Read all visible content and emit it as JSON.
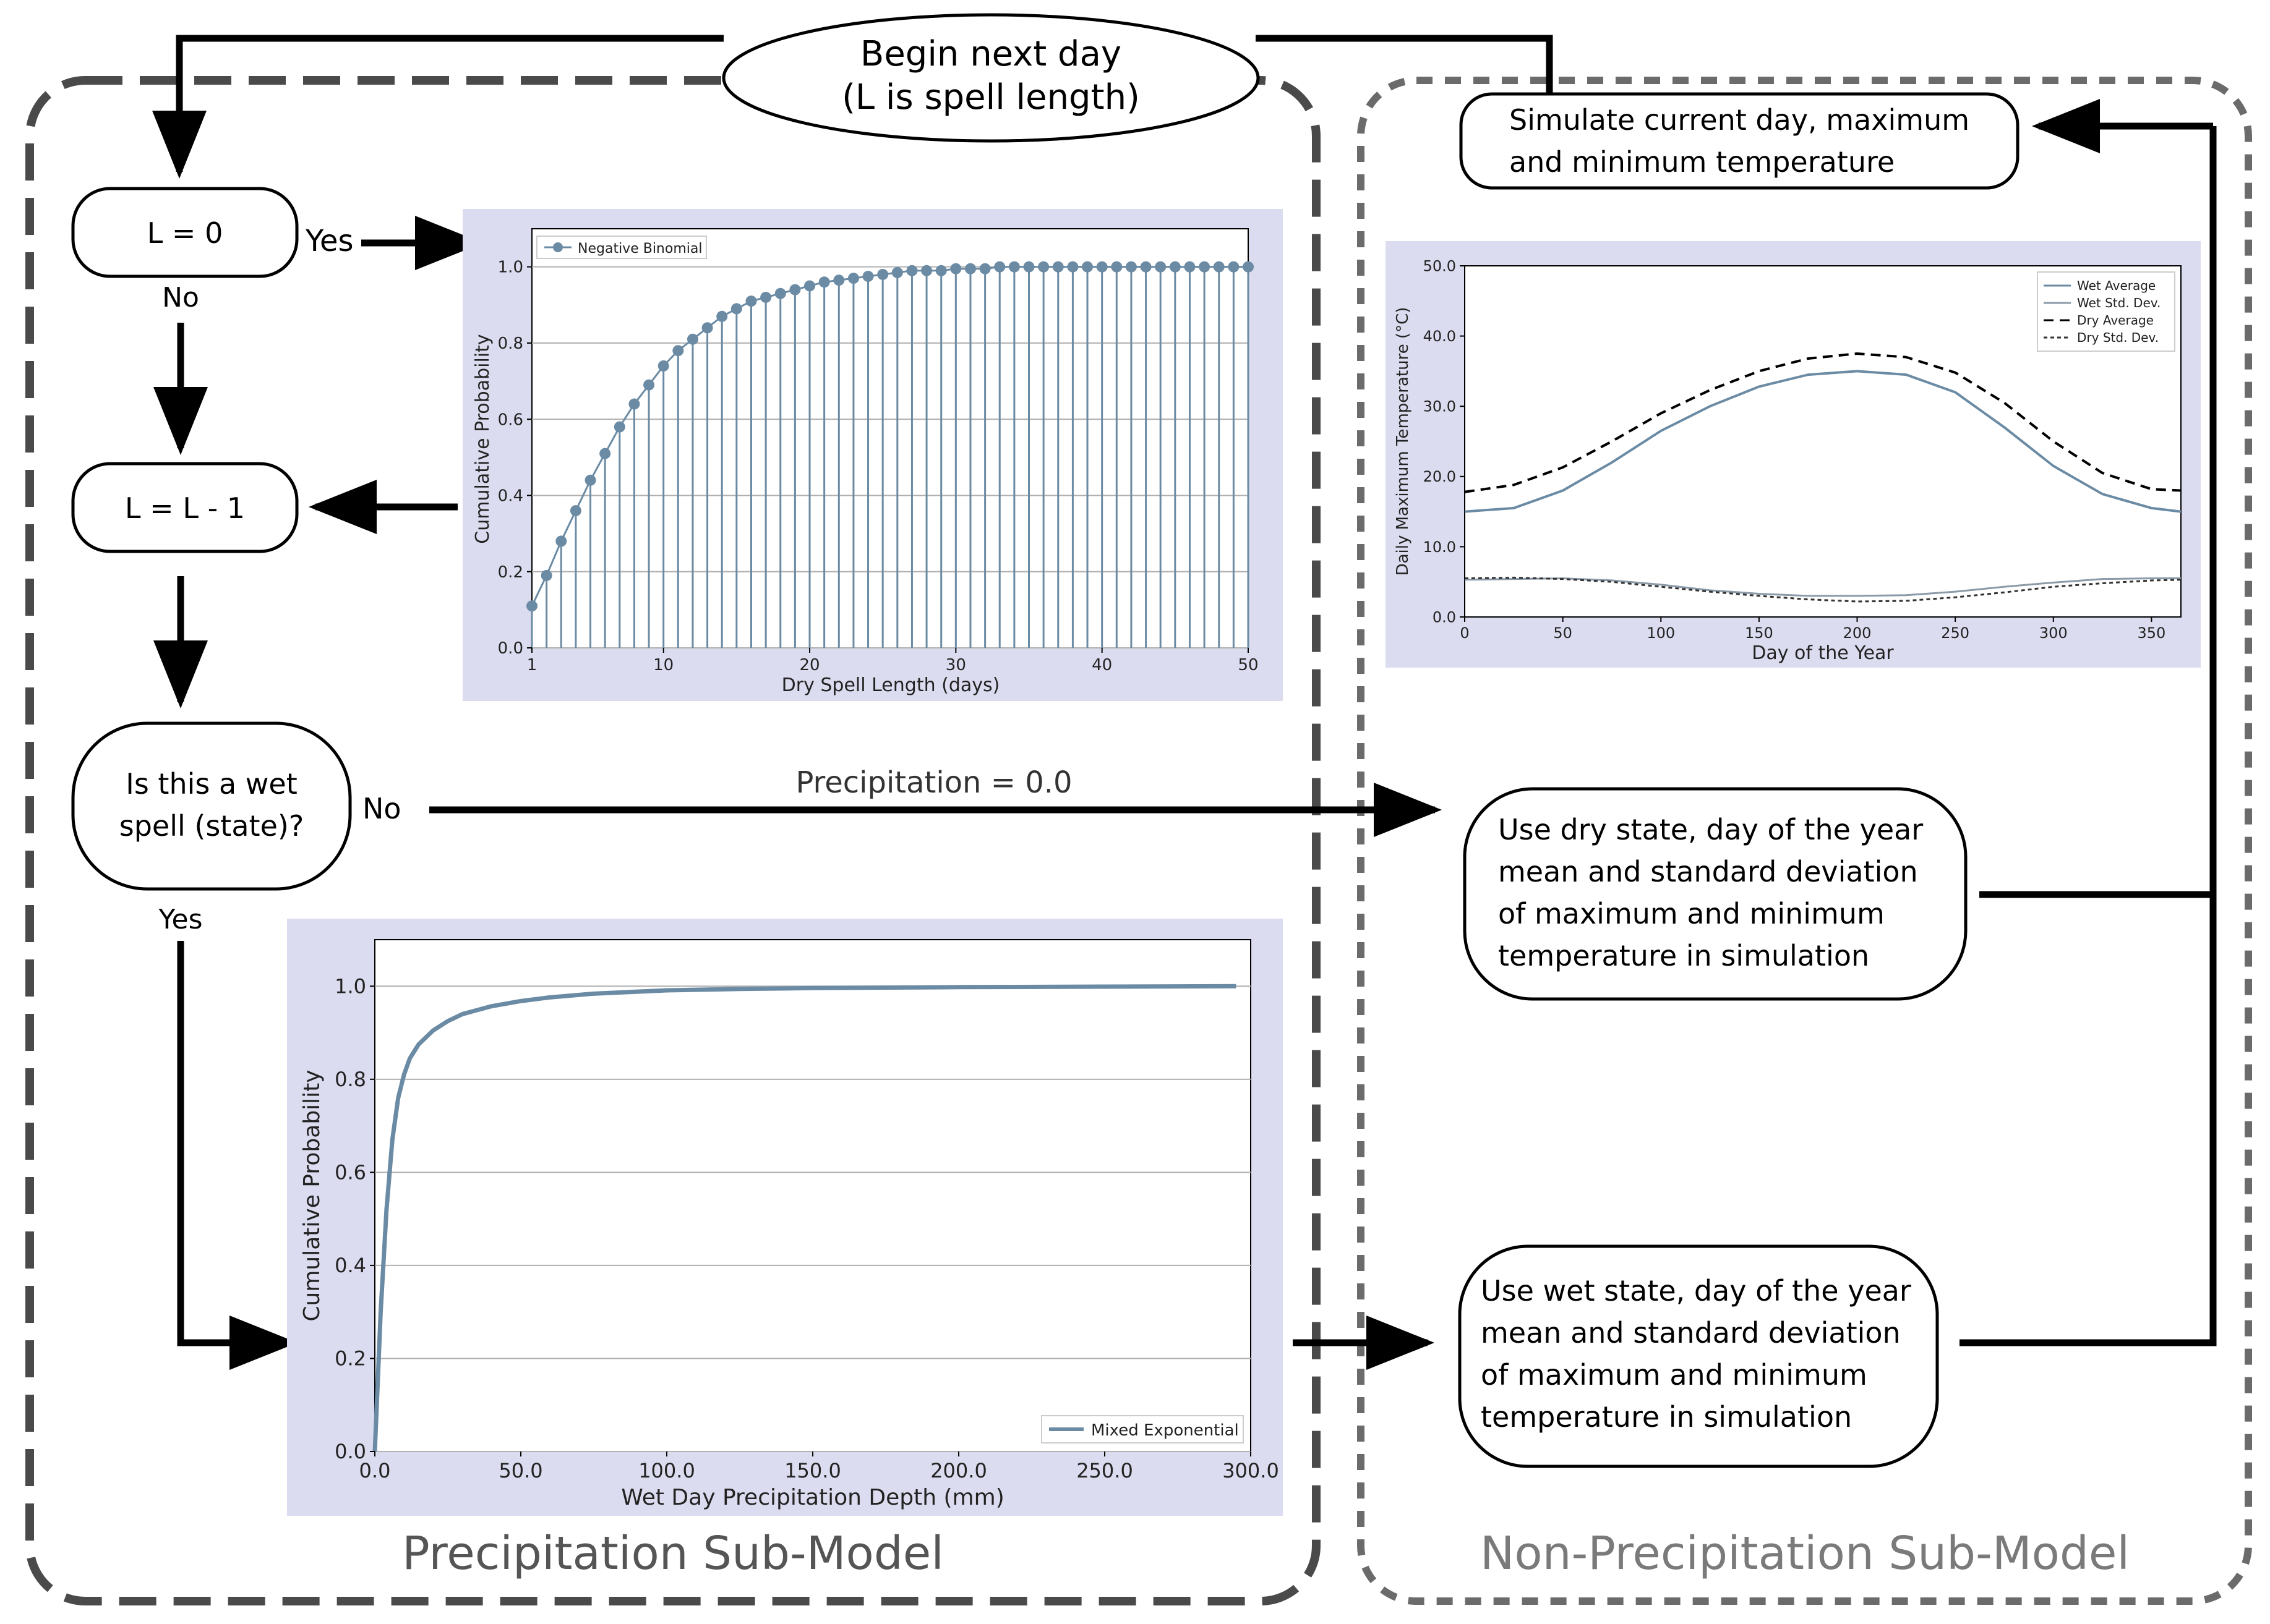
{
  "flow": {
    "start_line1": "Begin next day",
    "start_line2": "(L is spell length)",
    "l_zero": "L = 0",
    "yes_label": "Yes",
    "no_label": "No",
    "l_decrement": "L = L - 1",
    "wet_question_line1": "Is this a wet",
    "wet_question_line2": "spell (state)?",
    "no2_label": "No",
    "yes2_label": "Yes",
    "precip_zero": "Precipitation = 0.0",
    "simulate_line1": "Simulate current day, maximum",
    "simulate_line2": "and minimum temperature",
    "dry_box": [
      "Use dry state, day of the year",
      "mean and standard deviation",
      "of maximum and minimum",
      "temperature in simulation"
    ],
    "wet_box": [
      "Use wet state, day of the year",
      "mean and standard deviation",
      "of maximum and minimum",
      "temperature in simulation"
    ],
    "precip_submodel": "Precipitation Sub-Model",
    "nonprecip_submodel": "Non-Precipitation Sub-Model"
  },
  "colors": {
    "line": "#000000",
    "dash_precip": "#4a4a4a",
    "dash_nonprecip": "#6b6b6b",
    "chart_bg": "#dcdcf0",
    "series": "#6b8ba4",
    "submodel_text": "#555555",
    "submodel_text_light": "#7a7a7a"
  },
  "chart_data": [
    {
      "id": "dry-spell",
      "type": "stem",
      "title": "",
      "xlabel": "Dry Spell Length (days)",
      "ylabel": "Cumulative Probability",
      "xlim": [
        1,
        50
      ],
      "ylim": [
        0,
        1.1
      ],
      "xticks": [
        1,
        10,
        20,
        30,
        40,
        50
      ],
      "yticks": [
        0.0,
        0.2,
        0.4,
        0.6,
        0.8,
        1.0
      ],
      "ytick_labels": [
        "0.0",
        "0.2",
        "0.4",
        "0.6",
        "0.8",
        "1.0"
      ],
      "legend": "Negative Binomial",
      "legend_position": "top-left",
      "x": [
        1,
        2,
        3,
        4,
        5,
        6,
        7,
        8,
        9,
        10,
        11,
        12,
        13,
        14,
        15,
        16,
        17,
        18,
        19,
        20,
        21,
        22,
        23,
        24,
        25,
        26,
        27,
        28,
        29,
        30,
        31,
        32,
        33,
        34,
        35,
        36,
        37,
        38,
        39,
        40,
        41,
        42,
        43,
        44,
        45,
        46,
        47,
        48,
        49,
        50
      ],
      "values": [
        0.11,
        0.19,
        0.28,
        0.36,
        0.44,
        0.51,
        0.58,
        0.64,
        0.69,
        0.74,
        0.78,
        0.81,
        0.84,
        0.87,
        0.89,
        0.91,
        0.92,
        0.93,
        0.94,
        0.95,
        0.96,
        0.965,
        0.97,
        0.975,
        0.98,
        0.985,
        0.99,
        0.99,
        0.99,
        0.995,
        0.995,
        0.995,
        1.0,
        1.0,
        1.0,
        1.0,
        1.0,
        1.0,
        1.0,
        1.0,
        1.0,
        1.0,
        1.0,
        1.0,
        1.0,
        1.0,
        1.0,
        1.0,
        1.0,
        1.0
      ]
    },
    {
      "id": "wet-depth",
      "type": "line",
      "title": "",
      "xlabel": "Wet Day Precipitation Depth (mm)",
      "ylabel": "Cumulative Probability",
      "xlim": [
        0,
        300
      ],
      "ylim": [
        0,
        1.1
      ],
      "xticks": [
        0,
        50,
        100,
        150,
        200,
        250,
        300
      ],
      "xtick_labels": [
        "0.0",
        "50.0",
        "100.0",
        "150.0",
        "200.0",
        "250.0",
        "300.0"
      ],
      "yticks": [
        0.0,
        0.2,
        0.4,
        0.6,
        0.8,
        1.0
      ],
      "ytick_labels": [
        "0.0",
        "0.2",
        "0.4",
        "0.6",
        "0.8",
        "1.0"
      ],
      "legend": "Mixed Exponential",
      "legend_position": "bottom-right",
      "x": [
        0,
        2,
        4,
        6,
        8,
        10,
        12,
        15,
        20,
        25,
        30,
        40,
        50,
        60,
        75,
        100,
        125,
        150,
        200,
        250,
        295
      ],
      "values": [
        0,
        0.3,
        0.52,
        0.67,
        0.76,
        0.81,
        0.845,
        0.875,
        0.905,
        0.925,
        0.94,
        0.957,
        0.968,
        0.976,
        0.984,
        0.991,
        0.994,
        0.996,
        0.998,
        0.999,
        1.0
      ]
    },
    {
      "id": "temperature",
      "type": "line",
      "title": "",
      "xlabel": "Day of the Year",
      "ylabel": "Daily Maximum Temperature (°C)",
      "xlim": [
        0,
        365
      ],
      "ylim": [
        0,
        50
      ],
      "xticks": [
        0,
        50,
        100,
        150,
        200,
        250,
        300,
        350
      ],
      "yticks": [
        0,
        10,
        20,
        30,
        40,
        50
      ],
      "ytick_labels": [
        "0.0",
        "10.0",
        "20.0",
        "30.0",
        "40.0",
        "50.0"
      ],
      "legend_position": "top-right",
      "x": [
        0,
        25,
        50,
        75,
        100,
        125,
        150,
        175,
        200,
        225,
        250,
        275,
        300,
        325,
        350,
        365
      ],
      "series": [
        {
          "name": "Wet Average",
          "style": "solid",
          "values": [
            15.0,
            15.5,
            18.0,
            22.0,
            26.5,
            30.0,
            32.8,
            34.5,
            35.0,
            34.5,
            32.0,
            27.0,
            21.5,
            17.5,
            15.5,
            15.0
          ]
        },
        {
          "name": "Wet Std. Dev.",
          "style": "solid-light",
          "values": [
            5.3,
            5.4,
            5.5,
            5.2,
            4.6,
            3.8,
            3.3,
            3.0,
            3.0,
            3.1,
            3.6,
            4.3,
            4.9,
            5.4,
            5.5,
            5.5
          ]
        },
        {
          "name": "Dry Average",
          "style": "dashed",
          "values": [
            17.8,
            18.8,
            21.3,
            25.0,
            29.0,
            32.3,
            35.0,
            36.8,
            37.5,
            37.0,
            34.8,
            30.5,
            25.0,
            20.5,
            18.2,
            18.0
          ]
        },
        {
          "name": "Dry Std. Dev.",
          "style": "dotted",
          "values": [
            5.5,
            5.6,
            5.4,
            5.0,
            4.3,
            3.6,
            3.0,
            2.5,
            2.2,
            2.3,
            2.8,
            3.5,
            4.3,
            4.8,
            5.2,
            5.3
          ]
        }
      ]
    }
  ]
}
